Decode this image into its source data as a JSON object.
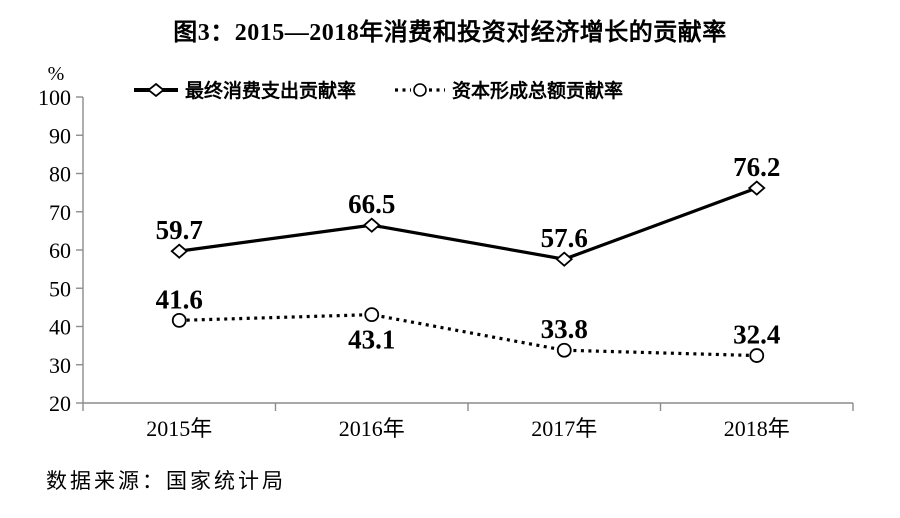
{
  "source_note": "数据来源：国家统计局",
  "colors": {
    "background": "#ffffff",
    "axis": "#8c8c8c",
    "series_line": "#000000",
    "text": "#000000",
    "marker_fill": "#ffffff"
  },
  "chart_data": {
    "type": "line",
    "title": "图3：2015—2018年消费和投资对经济增长的贡献率",
    "categories": [
      "2015年",
      "2016年",
      "2017年",
      "2018年"
    ],
    "series": [
      {
        "name": "最终消费支出贡献率",
        "values": [
          59.7,
          66.5,
          57.6,
          76.2
        ],
        "labels": [
          "59.7",
          "66.5",
          "57.6",
          "76.2"
        ],
        "label_side": [
          "above",
          "above",
          "above",
          "above"
        ],
        "line_style": "solid",
        "marker": "diamond",
        "color": "#000000"
      },
      {
        "name": "资本形成总额贡献率",
        "values": [
          41.6,
          43.1,
          33.8,
          32.4
        ],
        "labels": [
          "41.6",
          "43.1",
          "33.8",
          "32.4"
        ],
        "label_side": [
          "above",
          "below",
          "above",
          "above"
        ],
        "line_style": "dotted",
        "marker": "circle",
        "color": "#000000"
      }
    ],
    "ylabel": "%",
    "xlabel": "",
    "ylim": [
      20,
      100
    ],
    "yticks": [
      20,
      30,
      40,
      50,
      60,
      70,
      80,
      90,
      100
    ],
    "grid": false,
    "legend_position": "top-left"
  }
}
